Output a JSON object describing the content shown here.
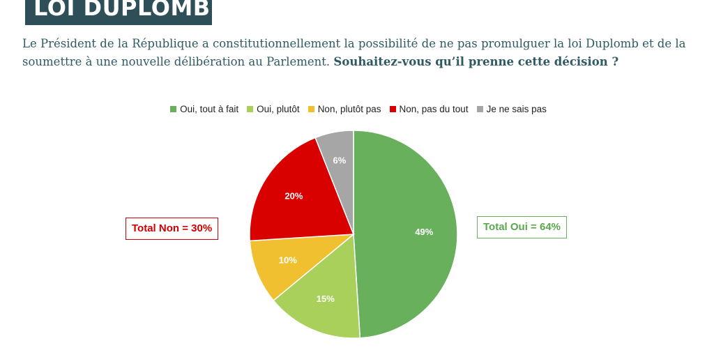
{
  "header": {
    "banner_title": "LOI DUPLOMB",
    "question_text": "Le Président de la République a constitutionnellement la possibilité de ne pas promulguer la loi Duplomb et de la soumettre à une nouvelle délibération au Parlement. ",
    "question_bold": "Souhaitez-vous qu’il prenne cette décision ?"
  },
  "chart_data": {
    "type": "pie",
    "categories": [
      "Oui, tout à fait",
      "Oui, plutôt",
      "Non, plutôt pas",
      "Non, pas du tout",
      "Je ne sais pas"
    ],
    "values": [
      49,
      15,
      10,
      20,
      6
    ],
    "data_labels": [
      "49%",
      "15%",
      "10%",
      "20%",
      "6%"
    ],
    "colors": [
      "#68b05b",
      "#a8d05a",
      "#f0c030",
      "#d90000",
      "#a6a6a6"
    ],
    "start": "top, clockwise",
    "legend": "top-center",
    "annotations": {
      "total_non": "Total Non = 30%",
      "total_oui": "Total Oui = 64%"
    }
  }
}
